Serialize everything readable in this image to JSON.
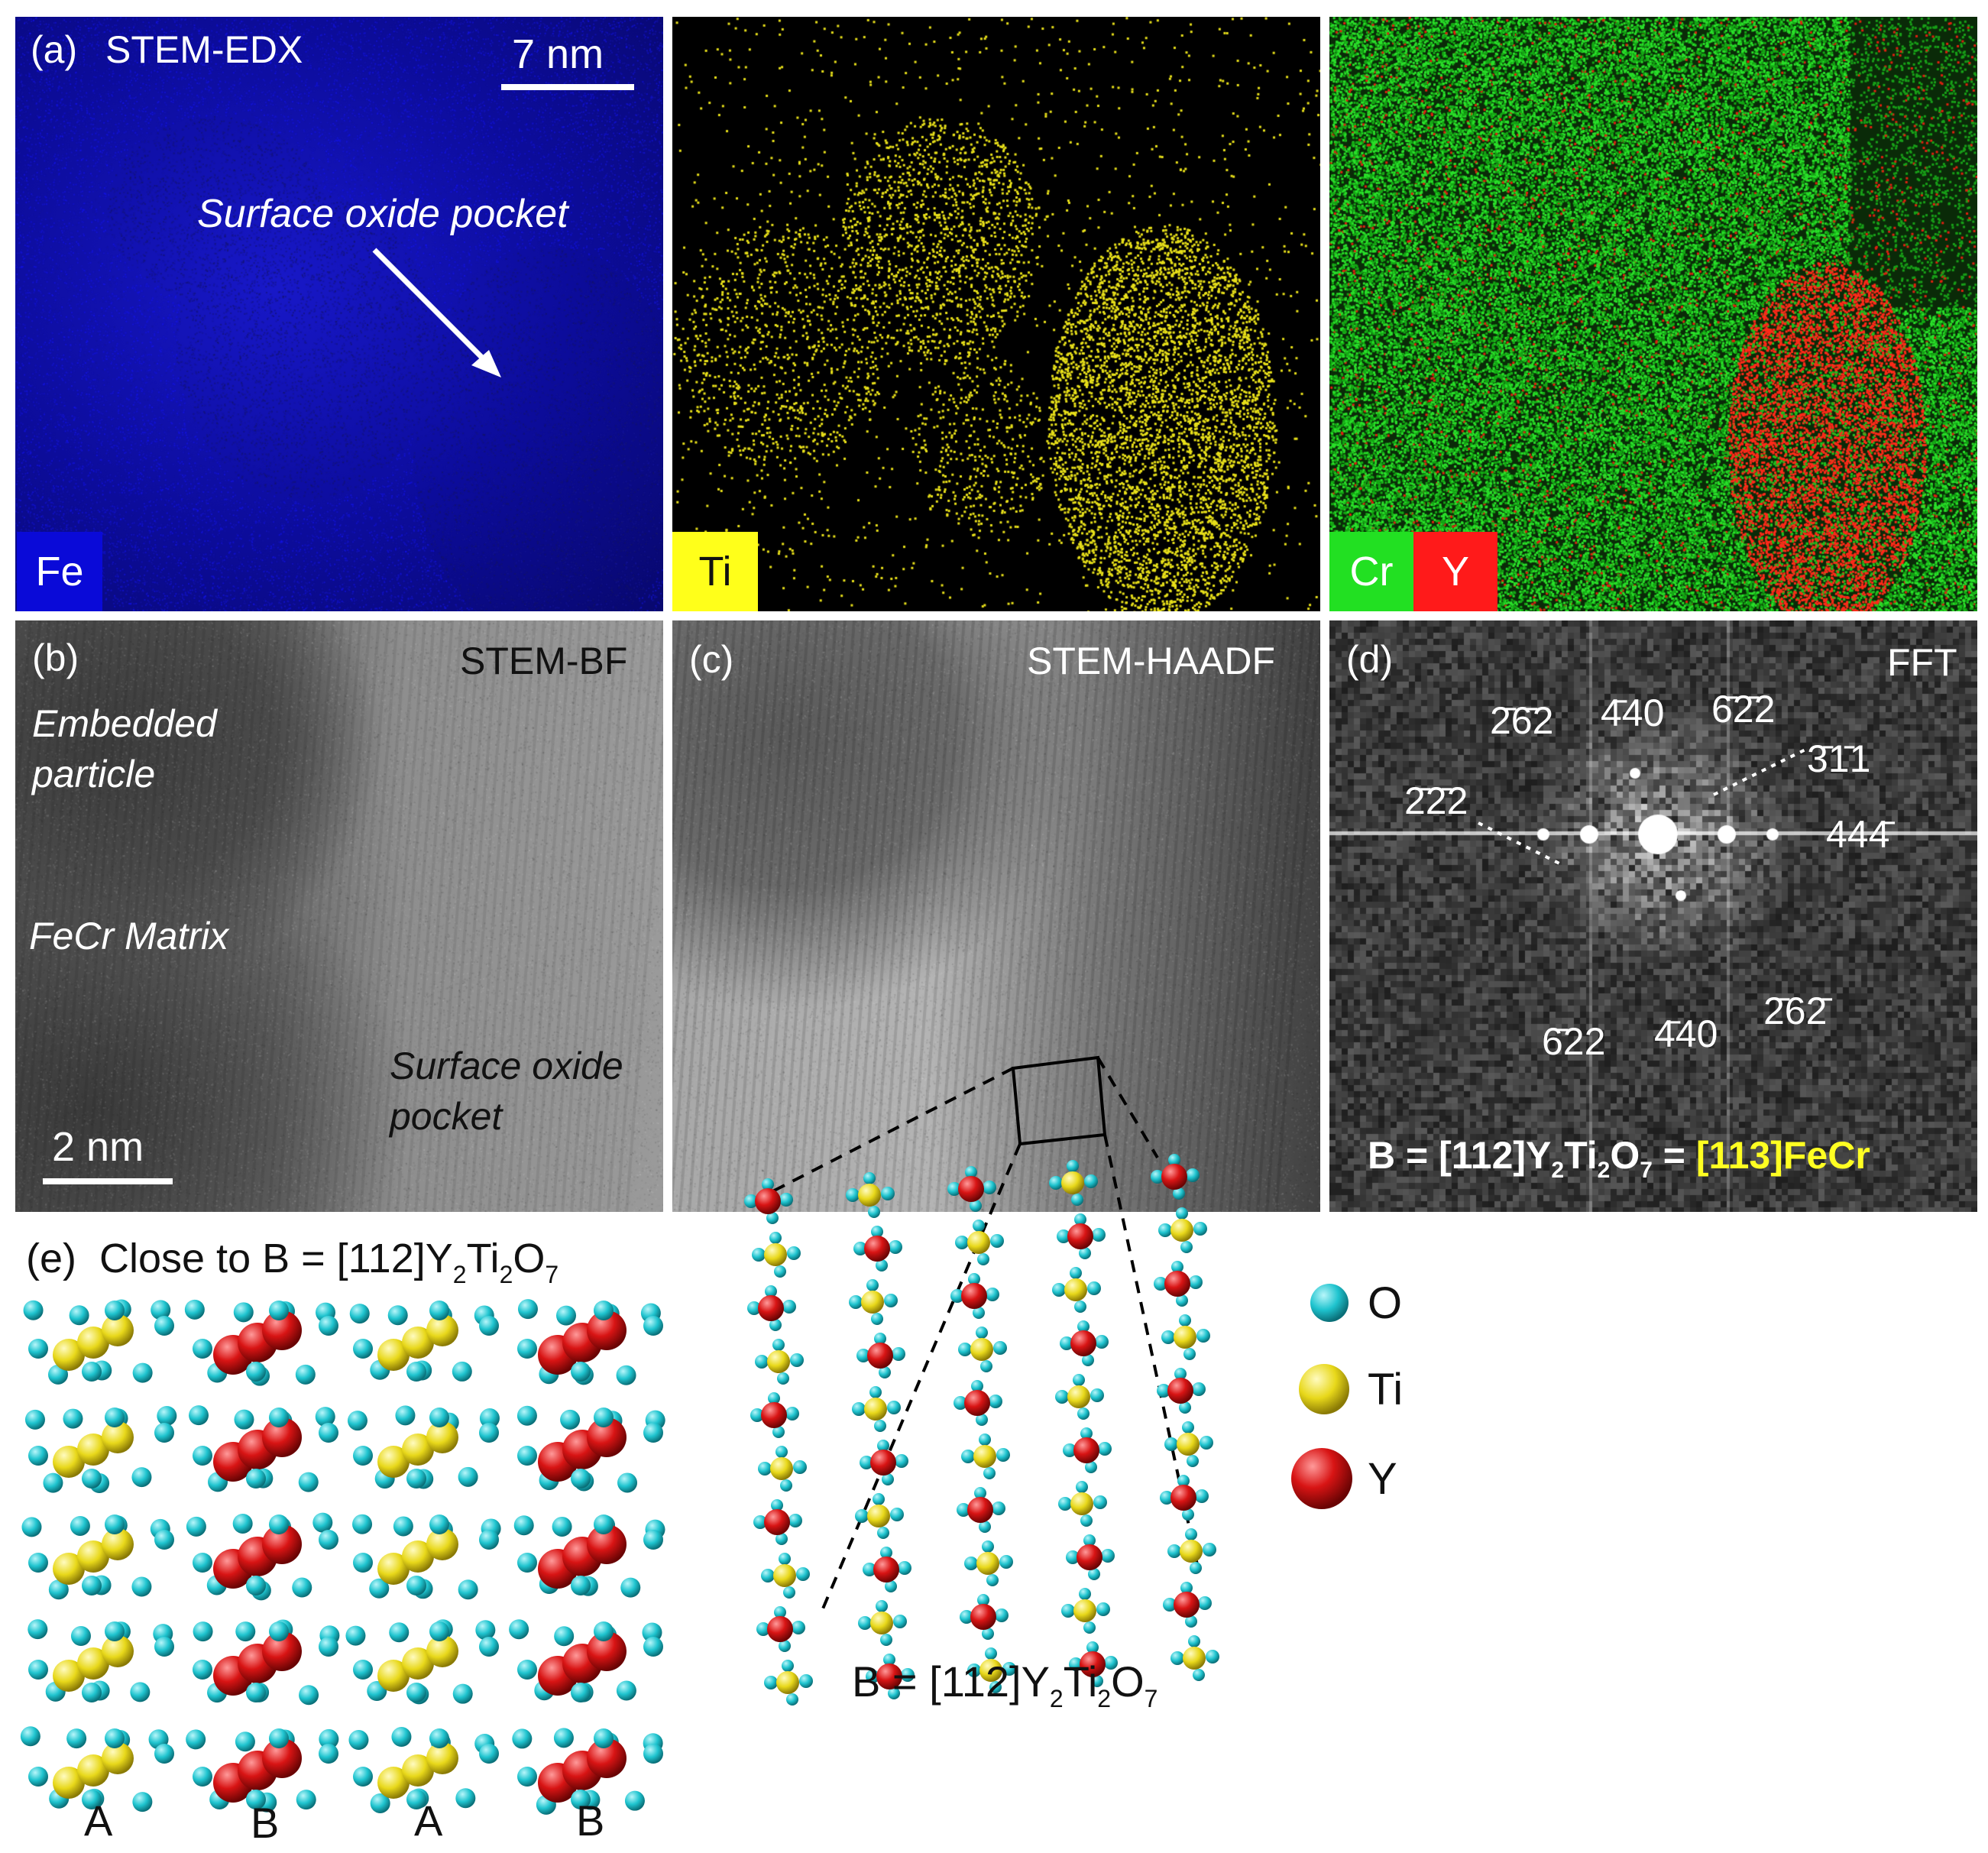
{
  "panel_a": {
    "letter": "(a)",
    "title": "STEM-EDX",
    "scalebar": "7 nm",
    "annotation": "Surface oxide pocket",
    "fe_tag": "Fe",
    "ti_tag": "Ti",
    "cr_tag": "Cr",
    "y_tag": "Y",
    "colors": {
      "fe": "#1a1aff",
      "ti": "#ffff22",
      "cr": "#22ee22",
      "y": "#ff2020"
    }
  },
  "panel_b": {
    "letter": "(b)",
    "title": "STEM-BF",
    "embedded_1": "Embedded",
    "embedded_2": "particle",
    "matrix": "FeCr Matrix",
    "pocket_1": "Surface oxide",
    "pocket_2": "pocket",
    "scalebar": "2 nm"
  },
  "panel_c": {
    "letter": "(c)",
    "title": "STEM-HAADF"
  },
  "panel_d": {
    "letter": "(d)",
    "title": "FFT",
    "spots": [
      "2̄6̄2",
      "4̄40",
      "6̄2̄2",
      "3̄1̄1",
      "2̄2̄2",
      "444̄",
      "6̄22",
      "4̄40",
      "2̄62̄"
    ],
    "axis_pre": "B = [112]Y",
    "axis_mid": "Ti",
    "axis_o": "O",
    "axis_sub": "2",
    "axis_sub7": "7",
    "axis_eq": " = ",
    "axis_fecr": "[113]FeCr"
  },
  "panel_e": {
    "letter": "(e)",
    "title_pre": "Close to B = [112]Y",
    "title_ti": "Ti",
    "title_o": "O",
    "sub2": "2",
    "sub7": "7",
    "columns": [
      "A",
      "B",
      "A",
      "B"
    ],
    "model_label_pre": "B = [112]Y",
    "model_label_ti": "Ti",
    "model_label_o": "O"
  },
  "legend": {
    "items": [
      {
        "label": "O",
        "color": "#1fc4cf"
      },
      {
        "label": "Ti",
        "color": "#e8d81a"
      },
      {
        "label": "Y",
        "color": "#d81414"
      }
    ]
  }
}
